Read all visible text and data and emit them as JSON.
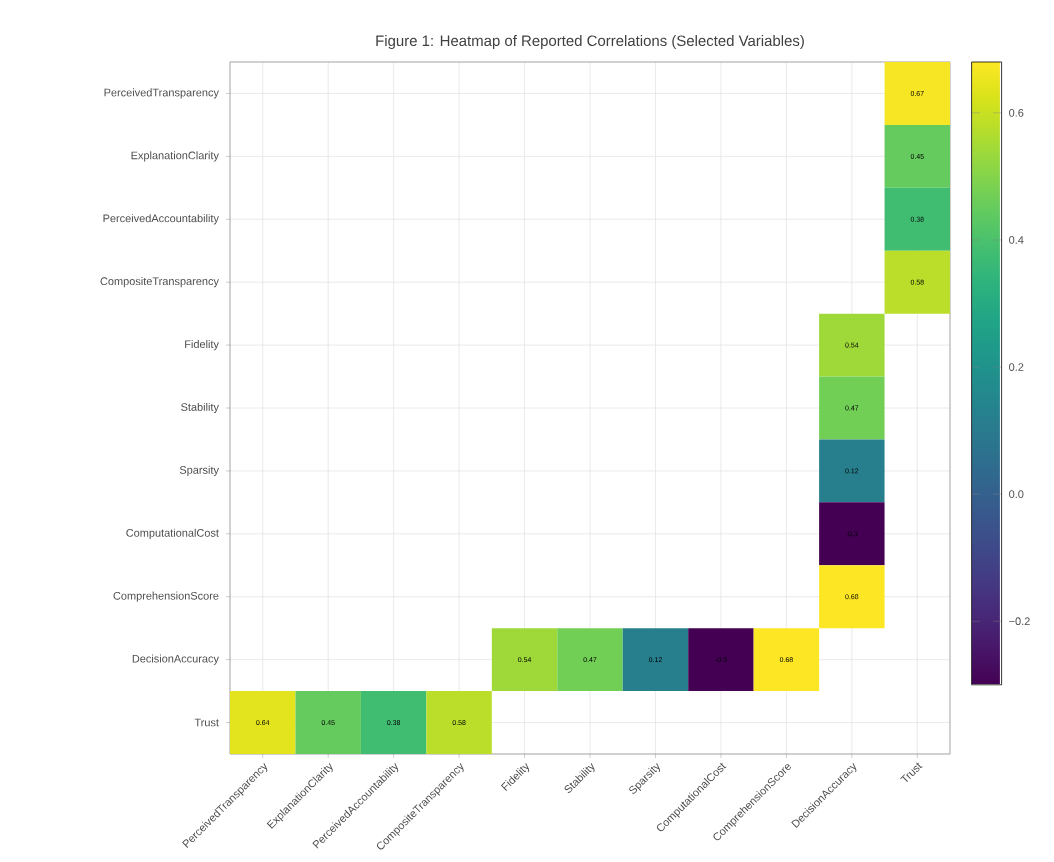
{
  "chart_data": {
    "type": "heatmap",
    "title": "Figure 1: Heatmap of Reported Correlations (Selected Variables)",
    "categories": [
      "PerceivedTransparency",
      "ExplanationClarity",
      "PerceivedAccountability",
      "CompositeTransparency",
      "Fidelity",
      "Stability",
      "Sparsity",
      "ComputationalCost",
      "ComprehensionScore",
      "DecisionAccuracy",
      "Trust"
    ],
    "y_categories": [
      "PerceivedTransparency",
      "ExplanationClarity",
      "PerceivedAccountability",
      "CompositeTransparency",
      "Fidelity",
      "Stability",
      "Sparsity",
      "ComputationalCost",
      "ComprehensionScore",
      "DecisionAccuracy",
      "Trust"
    ],
    "cells": [
      [
        null,
        null,
        null,
        null,
        null,
        null,
        null,
        null,
        null,
        null,
        0.67
      ],
      [
        null,
        null,
        null,
        null,
        null,
        null,
        null,
        null,
        null,
        null,
        0.45
      ],
      [
        null,
        null,
        null,
        null,
        null,
        null,
        null,
        null,
        null,
        null,
        0.38
      ],
      [
        null,
        null,
        null,
        null,
        null,
        null,
        null,
        null,
        null,
        null,
        0.58
      ],
      [
        null,
        null,
        null,
        null,
        null,
        null,
        null,
        null,
        null,
        0.54,
        null
      ],
      [
        null,
        null,
        null,
        null,
        null,
        null,
        null,
        null,
        null,
        0.47,
        null
      ],
      [
        null,
        null,
        null,
        null,
        null,
        null,
        null,
        null,
        null,
        0.12,
        null
      ],
      [
        null,
        null,
        null,
        null,
        null,
        null,
        null,
        null,
        null,
        -0.3,
        null
      ],
      [
        null,
        null,
        null,
        null,
        null,
        null,
        null,
        null,
        null,
        0.68,
        null
      ],
      [
        null,
        null,
        null,
        null,
        0.54,
        0.47,
        0.12,
        -0.3,
        0.68,
        null,
        null
      ],
      [
        0.64,
        0.45,
        0.38,
        0.58,
        null,
        null,
        null,
        null,
        null,
        null,
        null
      ]
    ],
    "clim": [
      -0.3,
      0.68
    ],
    "cticks": [
      {
        "value": -0.2,
        "label": "−0.2"
      },
      {
        "value": 0,
        "label": "0.0"
      },
      0.2,
      0.4,
      0.6
    ],
    "data_labels": true,
    "grid": true
  }
}
